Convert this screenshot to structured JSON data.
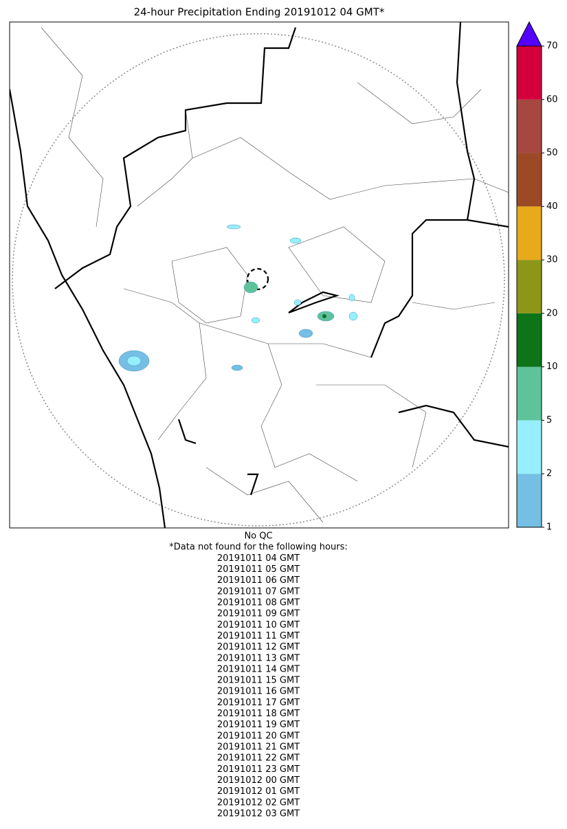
{
  "title": "24-hour Precipitation Ending 20191012 04 GMT*",
  "colorbar": {
    "ticks": [
      1,
      2,
      5,
      10,
      20,
      30,
      40,
      50,
      60,
      70
    ],
    "colors": [
      "#74bfe3",
      "#97effe",
      "#5ec39a",
      "#0d7419",
      "#8c9718",
      "#e6aa1b",
      "#9c4a25",
      "#a64740",
      "#d4003d"
    ],
    "extend_color": "#5500ff"
  },
  "footer": {
    "qc": "No QC",
    "note": "*Data not found for the following hours:",
    "hours": [
      "20191011 04 GMT",
      "20191011 05 GMT",
      "20191011 06 GMT",
      "20191011 07 GMT",
      "20191011 08 GMT",
      "20191011 09 GMT",
      "20191011 10 GMT",
      "20191011 11 GMT",
      "20191011 12 GMT",
      "20191011 13 GMT",
      "20191011 14 GMT",
      "20191011 15 GMT",
      "20191011 16 GMT",
      "20191011 17 GMT",
      "20191011 18 GMT",
      "20191011 19 GMT",
      "20191011 20 GMT",
      "20191011 21 GMT",
      "20191011 22 GMT",
      "20191011 23 GMT",
      "20191012 00 GMT",
      "20191012 01 GMT",
      "20191012 02 GMT",
      "20191012 03 GMT"
    ]
  }
}
